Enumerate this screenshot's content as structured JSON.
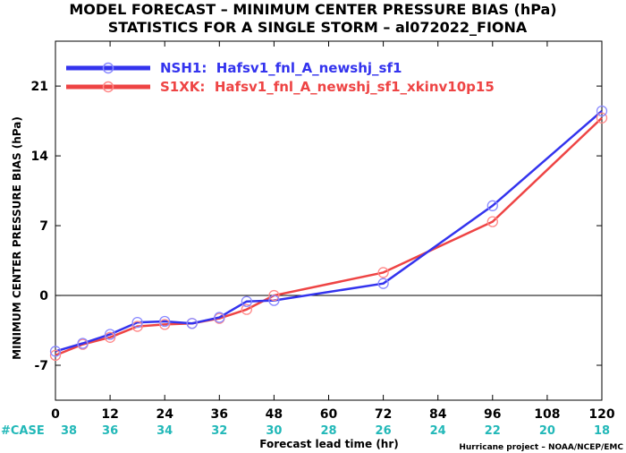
{
  "chart_data": {
    "type": "line",
    "title": "MODEL FORECAST – MINIMUM CENTER PRESSURE BIAS (hPa)",
    "subtitle": "STATISTICS FOR A SINGLE STORM – al072022_FIONA",
    "xlabel": "Forecast lead time (hr)",
    "ylabel": "MINIMUM CENTER PRESSURE BIAS (hPa)",
    "xlim": [
      0,
      120
    ],
    "ylim": [
      -10.5,
      25.5
    ],
    "xticks": [
      0,
      12,
      24,
      36,
      48,
      60,
      72,
      84,
      96,
      108,
      120
    ],
    "xtick_labels": [
      "0",
      "12",
      "24",
      "36",
      "48",
      "60",
      "72",
      "84",
      "96",
      "108",
      "120"
    ],
    "yticks": [
      -7,
      0,
      7,
      14,
      21
    ],
    "ytick_labels": [
      "-7",
      "0",
      "7",
      "14",
      "21"
    ],
    "zero_line": true,
    "legend_position": "top-left",
    "case_label": "#CASE",
    "case_counts": [
      "38",
      "36",
      "34",
      "32",
      "30",
      "28",
      "26",
      "24",
      "22",
      "20",
      "18"
    ],
    "credit": "Hurricane project – NOAA/NCEP/EMC",
    "series": [
      {
        "name": "NSH1:  Hafsv1_fnl_A_newshj_sf1",
        "color": "#3333ee",
        "x": [
          0,
          6,
          12,
          18,
          24,
          30,
          36,
          42,
          48,
          72,
          96,
          120
        ],
        "y": [
          -5.6,
          -4.8,
          -3.9,
          -2.7,
          -2.6,
          -2.8,
          -2.2,
          -0.6,
          -0.5,
          1.2,
          9.0,
          18.5
        ]
      },
      {
        "name": "S1XK:  Hafsv1_fnl_A_newshj_sf1_xkinv10p15",
        "color": "#ee4444",
        "x": [
          0,
          6,
          12,
          18,
          24,
          30,
          36,
          42,
          48,
          72,
          96,
          120
        ],
        "y": [
          -6.0,
          -4.9,
          -4.2,
          -3.1,
          -2.9,
          -2.8,
          -2.3,
          -1.4,
          0.0,
          2.3,
          7.4,
          17.8
        ]
      }
    ]
  }
}
